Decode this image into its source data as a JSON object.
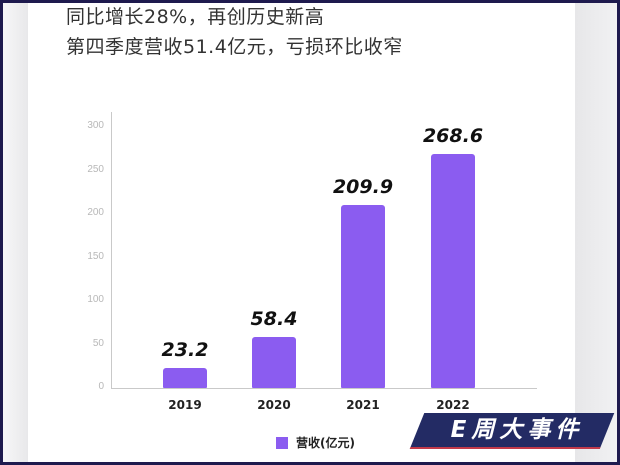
{
  "headline": {
    "line1": "同比增长28%，再创历史新高",
    "line2": "第四季度营收51.4亿元，亏损环比收窄"
  },
  "chart_data": {
    "type": "bar",
    "title": "",
    "categories": [
      "2019",
      "2020",
      "2021",
      "2022"
    ],
    "series": [
      {
        "name": "营收(亿元)",
        "values": [
          23.2,
          58.4,
          209.9,
          268.6
        ],
        "color": "#8b5cf0"
      }
    ],
    "value_labels": [
      "23.2",
      "58.4",
      "209.9",
      "268.6"
    ],
    "xlabel": "",
    "ylabel": "",
    "ylim": [
      0,
      300
    ],
    "yticks": [
      "0",
      "50",
      "100",
      "150",
      "200",
      "250",
      "300"
    ],
    "grid": false,
    "legend_position": "bottom"
  },
  "legend": {
    "label": "营收(亿元)",
    "color": "#8b5cf0"
  },
  "watermark": {
    "text": "E周大事件",
    "bg_color": "#232b64",
    "accent_color": "#c23a4a"
  }
}
